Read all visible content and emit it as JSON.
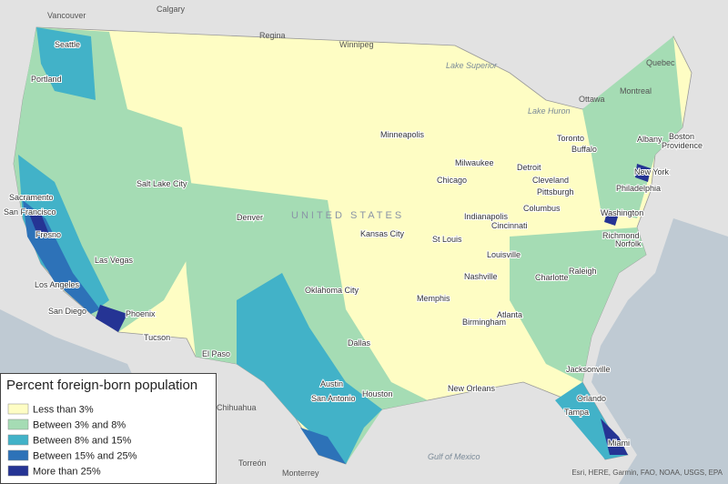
{
  "legend": {
    "title": "Percent foreign-born population",
    "items": [
      {
        "label": "Less than 3%",
        "color": "#fefdc4"
      },
      {
        "label": "Between 3% and 8%",
        "color": "#a5dcb4"
      },
      {
        "label": "Between 8% and 15%",
        "color": "#42b2c8"
      },
      {
        "label": "Between 15% and 25%",
        "color": "#2d72b8"
      },
      {
        "label": "More than 25%",
        "color": "#253494"
      }
    ]
  },
  "labels": [
    "Vancouver",
    "Calgary",
    "Regina",
    "Winnipeg",
    "Quebec",
    "Ottawa",
    "Montreal",
    "Toronto",
    "Boston",
    "Providence",
    "Albany",
    "Buffalo",
    "New York",
    "Philadelphia",
    "Washington",
    "Richmond",
    "Norfolk",
    "Raleigh",
    "Charlotte",
    "Atlanta",
    "Jacksonville",
    "Tampa",
    "Orlando",
    "Miami",
    "Seattle",
    "Portland",
    "Sacramento",
    "San Francisco",
    "Fresno",
    "Las Vegas",
    "Los Angeles",
    "San Diego",
    "Phoenix",
    "Tucson",
    "El Paso",
    "Salt Lake City",
    "Denver",
    "Minneapolis",
    "Milwaukee",
    "Chicago",
    "Detroit",
    "Cleveland",
    "Pittsburgh",
    "Columbus",
    "Indianapolis",
    "Cincinnati",
    "Kansas City",
    "St Louis",
    "Nashville",
    "Louisville",
    "Memphis",
    "Oklahoma City",
    "Dallas",
    "Austin",
    "San Antonio",
    "Houston",
    "New Orleans",
    "Birmingham",
    "Chihuahua",
    "Torreón",
    "Monterrey",
    "Gulf of Mexico",
    "UNITED STATES",
    "Lake Superior",
    "Lake Huron"
  ],
  "attribution": "Esri, HERE, Garmin, FAO, NOAA, USGS, EPA"
}
